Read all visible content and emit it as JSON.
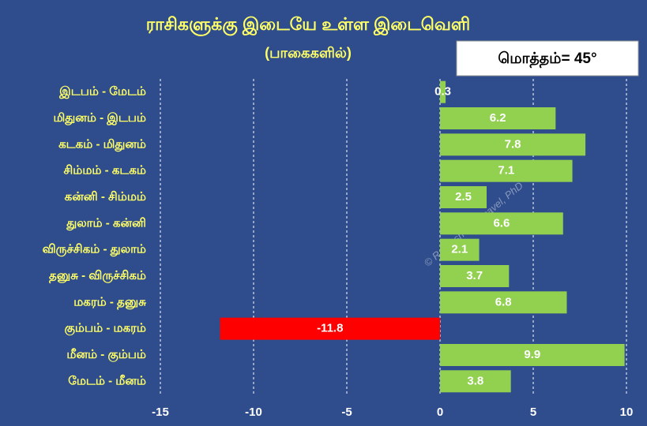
{
  "chart_data": {
    "type": "barh",
    "title": "ராசிகளுக்கு இடையே உள்ள இடைவெளி",
    "subtitle": "(பாகைகளில்)",
    "annotation": "மொத்தம்= 45°",
    "watermark": "© Ramesh Thangavel, PhD",
    "categories": [
      "இடபம்  - மேடம்",
      "மிதுனம்  - இடபம்",
      "கடகம்  - மிதுனம்",
      "சிம்மம்  - கடகம்",
      "கன்னி  - சிம்மம்",
      "துலாம்  - கன்னி",
      "விருச்சிகம்  - துலாம்",
      "தனுசு  - விருச்சிகம்",
      "மகரம்  - தனுசு",
      "கும்பம்  - மகரம்",
      "மீனம்  - கும்பம்",
      "மேடம்  - மீனம்"
    ],
    "values": [
      0.3,
      6.2,
      7.8,
      7.1,
      2.5,
      6.6,
      2.1,
      3.7,
      6.8,
      -11.8,
      9.9,
      3.8
    ],
    "color": "#92D050",
    "negative_color": "#FF0000",
    "xlim": [
      -15,
      10
    ],
    "xticks": [
      -15,
      -10,
      -5,
      0,
      5,
      10
    ],
    "grid": true
  }
}
